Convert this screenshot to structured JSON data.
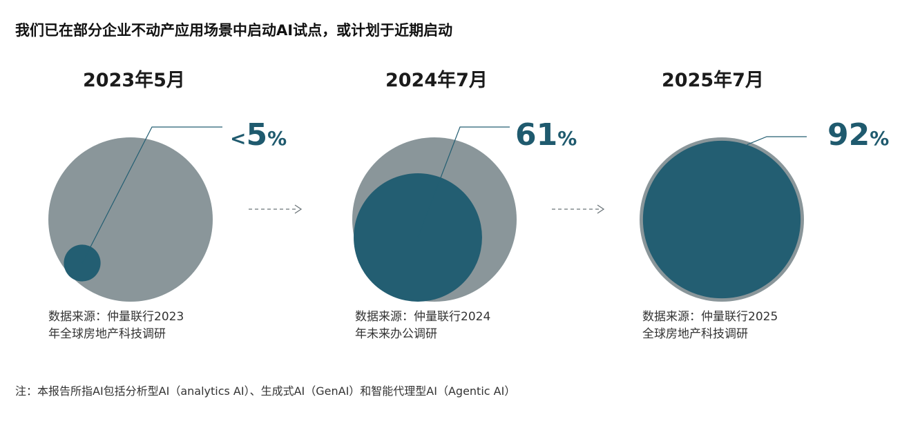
{
  "title": "我们已在部分企业不动产应用场景中启动AI试点，或计划于近期启动",
  "chart_data": {
    "type": "bubble",
    "series_label": "",
    "categories": [
      "2023年5月",
      "2024年7月",
      "2025年7月"
    ],
    "values": [
      5,
      61,
      92
    ],
    "value_labels": [
      {
        "prefix": "<",
        "number": "5",
        "suffix": "%"
      },
      {
        "prefix": "",
        "number": "61",
        "suffix": "%"
      },
      {
        "prefix": "",
        "number": "92",
        "suffix": "%"
      }
    ],
    "sources": [
      [
        "数据来源：仲量联行2023",
        "年全球房地产科技调研"
      ],
      [
        "数据来源：仲量联行2024",
        "年未来办公调研"
      ],
      [
        "数据来源：仲量联行2025",
        "全球房地产科技调研"
      ]
    ],
    "colors": {
      "outer": "#8a969a",
      "inner": "#235e72",
      "arrow": "#6b7478",
      "leader": "#235e72"
    }
  },
  "note": "注：本报告所指AI包括分析型AI（analytics AI）、生成式AI（GenAI）和智能代理型AI（Agentic AI）"
}
